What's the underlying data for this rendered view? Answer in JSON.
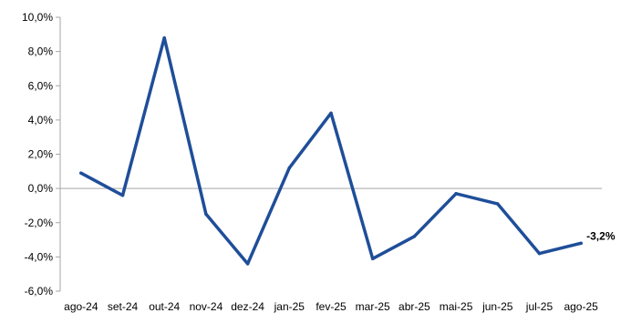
{
  "chart_data": {
    "type": "line",
    "title": "",
    "xlabel": "",
    "ylabel": "",
    "categories": [
      "ago-24",
      "set-24",
      "out-24",
      "nov-24",
      "dez-24",
      "jan-25",
      "fev-25",
      "mar-25",
      "abr-25",
      "mai-25",
      "jun-25",
      "jul-25",
      "ago-25"
    ],
    "series": [
      {
        "values": [
          0.9,
          -0.4,
          8.8,
          -1.5,
          -4.4,
          1.2,
          4.4,
          -4.1,
          -2.8,
          -0.3,
          -0.9,
          -3.8,
          -3.2
        ]
      }
    ],
    "ylim": [
      -6,
      10
    ],
    "yticks": [
      10,
      8,
      6,
      4,
      2,
      0,
      -2,
      -4,
      -6
    ],
    "ytick_labels": [
      "10,0%",
      "8,0%",
      "6,0%",
      "4,0%",
      "2,0%",
      "0,0%",
      "-2,0%",
      "-4,0%",
      "-6,0%"
    ],
    "data_labels": [
      {
        "index": 12,
        "text": "-3,2%"
      }
    ],
    "line_color": "#1F4E99",
    "grid": false,
    "legend": "none"
  }
}
